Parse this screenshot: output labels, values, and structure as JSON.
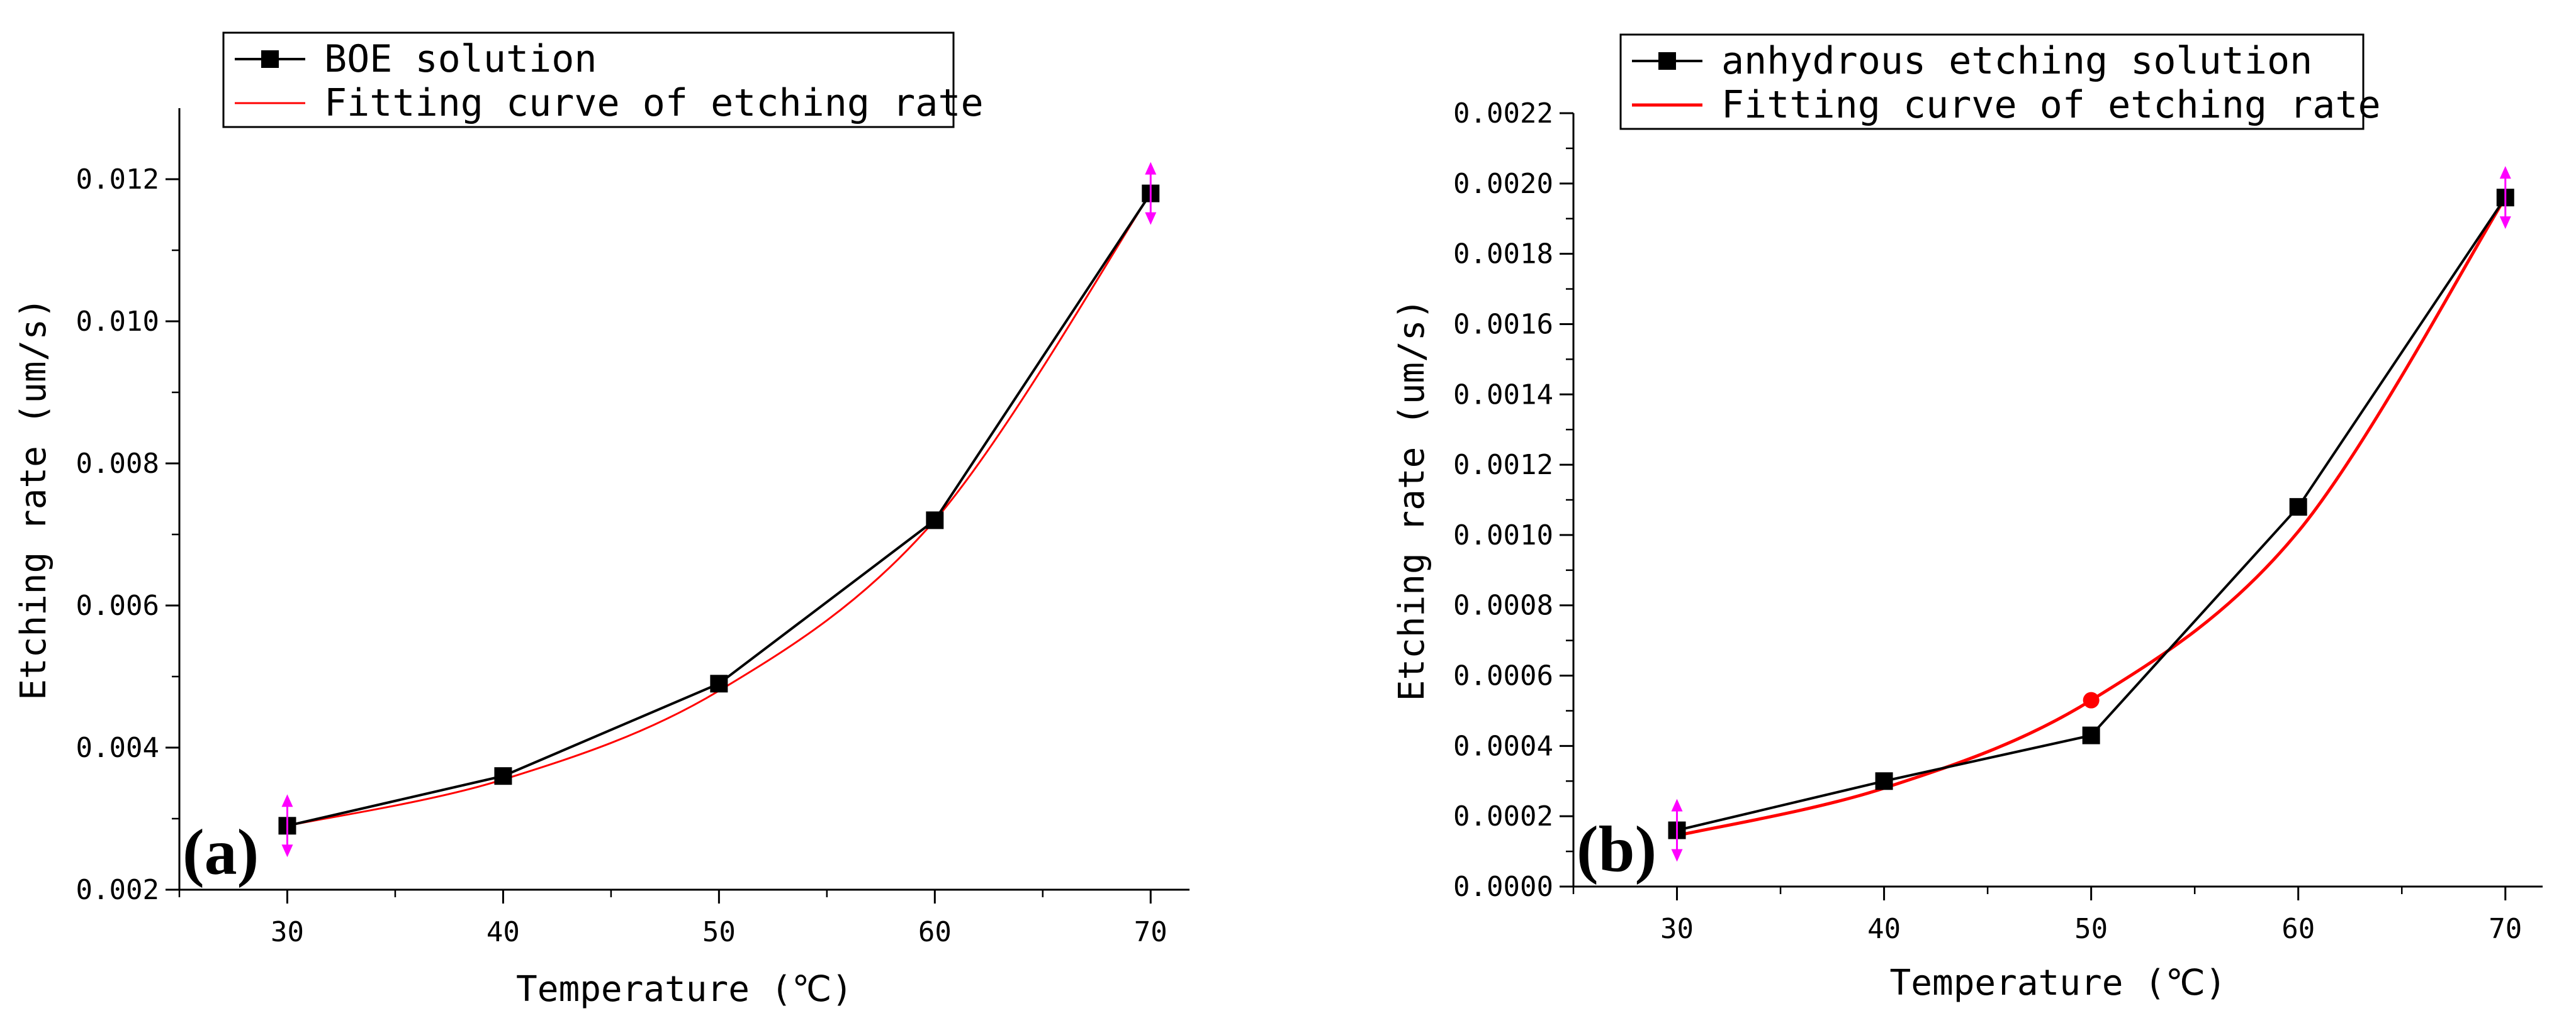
{
  "chart_data": [
    {
      "type": "line",
      "panel_label": "(a)",
      "x": [
        30,
        40,
        50,
        60,
        70
      ],
      "series": [
        {
          "name": "BOE solution",
          "values": [
            0.0029,
            0.0036,
            0.0049,
            0.0072,
            0.0118
          ],
          "color": "#000000",
          "marker": "square"
        },
        {
          "name": "Fitting curve of etching rate",
          "values": [
            0.0029,
            0.00355,
            0.0048,
            0.0072,
            0.0118
          ],
          "color": "#ff0000",
          "marker": "none"
        }
      ],
      "xlabel": "Temperature (℃)",
      "ylabel": "Etching rate (um/s)",
      "xlim": [
        25,
        71.8
      ],
      "ylim": [
        0.002,
        0.013
      ],
      "xticks": [
        30,
        40,
        50,
        60,
        70
      ],
      "yticks": [
        0.002,
        0.004,
        0.006,
        0.008,
        0.01,
        0.012
      ],
      "ytick_labels": [
        "0.002",
        "0.004",
        "0.006",
        "0.008",
        "0.010",
        "0.012"
      ],
      "error_marker_color": "#ff00ff",
      "legend_position": "top-left"
    },
    {
      "type": "line",
      "panel_label": "(b)",
      "x": [
        30,
        40,
        50,
        60,
        70
      ],
      "series": [
        {
          "name": "anhydrous etching solution",
          "values": [
            0.00016,
            0.0003,
            0.00043,
            0.00108,
            0.00196
          ],
          "color": "#000000",
          "marker": "square"
        },
        {
          "name": "Fitting curve of etching rate",
          "values": [
            0.000145,
            0.00028,
            0.00053,
            0.00101,
            0.00196
          ],
          "color": "#ff0000",
          "marker": "none"
        }
      ],
      "xlabel": "Temperature (℃)",
      "ylabel": "Etching rate (um/s)",
      "xlim": [
        25,
        71.8
      ],
      "ylim": [
        0,
        0.0022
      ],
      "xticks": [
        30,
        40,
        50,
        60,
        70
      ],
      "yticks": [
        0,
        0.0002,
        0.0004,
        0.0006,
        0.0008,
        0.001,
        0.0012,
        0.0014,
        0.0016,
        0.0018,
        0.002,
        0.0022
      ],
      "ytick_labels": [
        "0.0000",
        "0.0002",
        "0.0004",
        "0.0006",
        "0.0008",
        "0.0010",
        "0.0012",
        "0.0014",
        "0.0016",
        "0.0018",
        "0.0020",
        "0.0022"
      ],
      "error_marker_color": "#ff00ff",
      "legend_position": "top-left"
    }
  ]
}
